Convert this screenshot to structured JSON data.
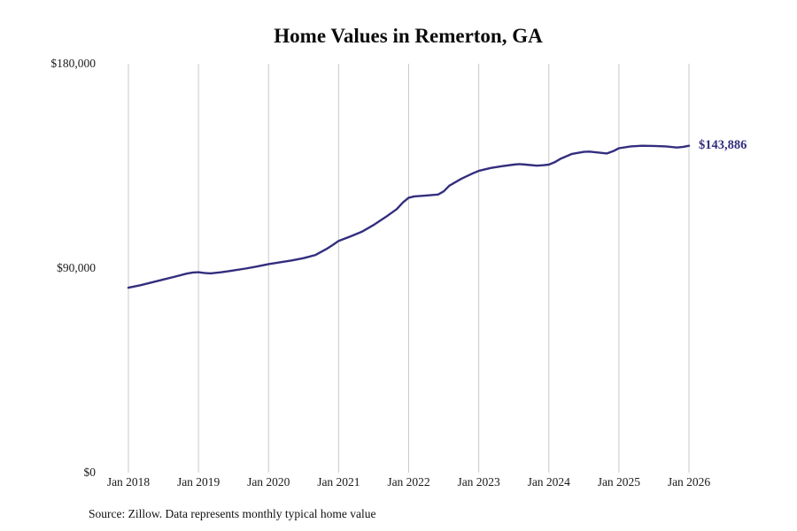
{
  "title": "Home Values in Remerton, GA",
  "source_note": "Source: Zillow. Data represents monthly typical home value",
  "end_label": "$143,886",
  "colors": {
    "line": "#332e7e",
    "end_label": "#332e7e",
    "grid": "#c9c9c9",
    "tick_text": "#1a1a1a",
    "title_text": "#0b0b0b"
  },
  "chart_data": {
    "type": "line",
    "title": "Home Values in Remerton, GA",
    "xlabel": "",
    "ylabel": "",
    "ylim": [
      0,
      180000
    ],
    "grid": "vertical-only",
    "legend": "none",
    "yticks": [
      {
        "value": 0,
        "label": "$0"
      },
      {
        "value": 90000,
        "label": "$90,000"
      },
      {
        "value": 180000,
        "label": "$180,000"
      }
    ],
    "xticks": [
      {
        "value": 2018.0,
        "label": "Jan 2018"
      },
      {
        "value": 2019.0,
        "label": "Jan 2019"
      },
      {
        "value": 2020.0,
        "label": "Jan 2020"
      },
      {
        "value": 2021.0,
        "label": "Jan 2021"
      },
      {
        "value": 2022.0,
        "label": "Jan 2022"
      },
      {
        "value": 2023.0,
        "label": "Jan 2023"
      },
      {
        "value": 2024.0,
        "label": "Jan 2024"
      },
      {
        "value": 2025.0,
        "label": "Jan 2025"
      },
      {
        "value": 2026.0,
        "label": "Jan 2026"
      }
    ],
    "series": [
      {
        "name": "Monthly typical home value",
        "last_value_label": "$143,886",
        "x": [
          2018.0,
          2018.17,
          2018.33,
          2018.5,
          2018.67,
          2018.83,
          2018.92,
          2019.0,
          2019.08,
          2019.17,
          2019.33,
          2019.5,
          2019.67,
          2019.83,
          2020.0,
          2020.17,
          2020.33,
          2020.5,
          2020.67,
          2020.83,
          2020.92,
          2021.0,
          2021.17,
          2021.33,
          2021.5,
          2021.67,
          2021.83,
          2021.92,
          2022.0,
          2022.08,
          2022.25,
          2022.42,
          2022.5,
          2022.58,
          2022.75,
          2022.92,
          2023.0,
          2023.17,
          2023.33,
          2023.5,
          2023.58,
          2023.67,
          2023.83,
          2023.92,
          2024.0,
          2024.08,
          2024.17,
          2024.33,
          2024.5,
          2024.58,
          2024.67,
          2024.83,
          2024.92,
          2025.0,
          2025.17,
          2025.33,
          2025.5,
          2025.67,
          2025.83,
          2025.92,
          2026.0
        ],
        "y": [
          81400,
          82500,
          83700,
          85000,
          86300,
          87600,
          88100,
          88200,
          87900,
          87700,
          88200,
          89000,
          89800,
          90700,
          91800,
          92600,
          93400,
          94400,
          95800,
          98500,
          100300,
          102000,
          104000,
          106000,
          109000,
          112500,
          116000,
          119000,
          121000,
          121600,
          122000,
          122400,
          123800,
          126300,
          129300,
          131800,
          132800,
          134100,
          134900,
          135600,
          135800,
          135600,
          135100,
          135300,
          135600,
          136600,
          138200,
          140300,
          141200,
          141300,
          141000,
          140500,
          141500,
          142800,
          143600,
          143900,
          143800,
          143600,
          143100,
          143400,
          143886
        ]
      }
    ]
  }
}
